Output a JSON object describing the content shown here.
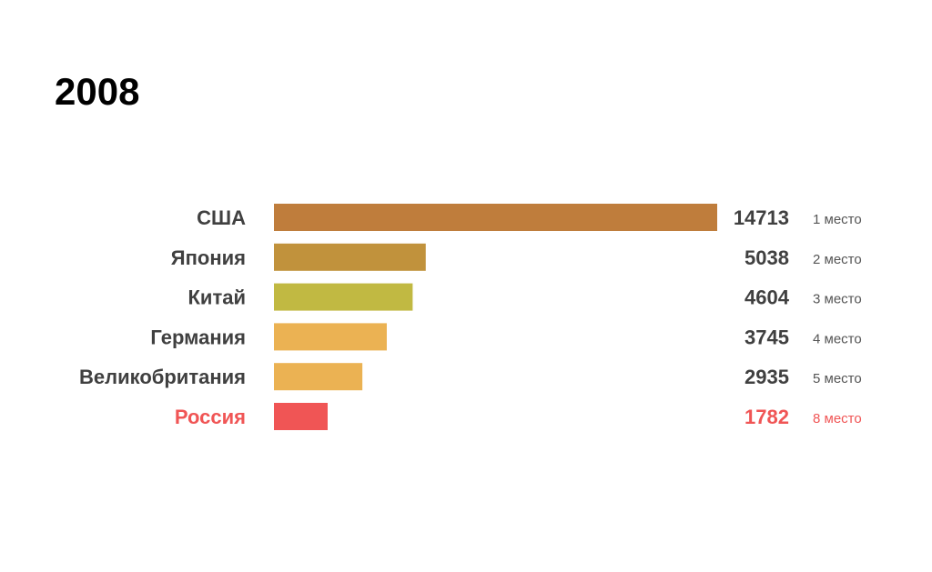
{
  "chart_data": {
    "type": "bar",
    "orientation": "horizontal",
    "title": "2008",
    "categories": [
      "США",
      "Япония",
      "Китай",
      "Германия",
      "Великобритания",
      "Россия"
    ],
    "values": [
      14713,
      5038,
      4604,
      3745,
      2935,
      1782
    ],
    "ranks": [
      "1 место",
      "2 место",
      "3 место",
      "4 место",
      "5 место",
      "8 место"
    ],
    "bar_colors": [
      "#bf7d3c",
      "#c1923c",
      "#c1b942",
      "#ebb253",
      "#ebb253",
      "#f05555"
    ],
    "label_colors": [
      "#404040",
      "#404040",
      "#404040",
      "#404040",
      "#404040",
      "#f05555"
    ],
    "value_colors": [
      "#404040",
      "#404040",
      "#404040",
      "#404040",
      "#404040",
      "#f05555"
    ],
    "rank_colors": [
      "#555555",
      "#555555",
      "#555555",
      "#555555",
      "#555555",
      "#f05555"
    ],
    "xlim": [
      0,
      14713
    ],
    "grid": false,
    "legend": "none"
  }
}
